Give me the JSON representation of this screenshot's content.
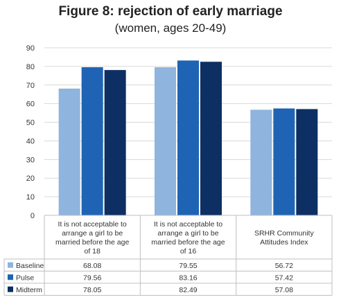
{
  "chart_data": {
    "type": "bar",
    "title": "Figure 8: rejection of early marriage",
    "subtitle": "(women, ages 20-49)",
    "categories": [
      [
        "It is not acceptable to",
        "arrange a girl to be",
        "married before the age",
        "of 18"
      ],
      [
        "It is not acceptable to",
        "arrange a girl to be",
        "married before the age",
        "of 16"
      ],
      [
        "SRHR Community",
        "Attitudes Index"
      ]
    ],
    "series": [
      {
        "name": "Baseline",
        "values": [
          68.08,
          79.55,
          56.72
        ],
        "labels": [
          "68.08",
          "79.55",
          "56.72"
        ],
        "color": "#8fb4de"
      },
      {
        "name": "Pulse",
        "values": [
          79.56,
          83.16,
          57.42
        ],
        "labels": [
          "79.56",
          "83.16",
          "57.42"
        ],
        "color": "#1f64b4"
      },
      {
        "name": "Midterm",
        "values": [
          78.05,
          82.49,
          57.08
        ],
        "labels": [
          "78.05",
          "82.49",
          "57.08"
        ],
        "color": "#0d2f63"
      }
    ],
    "ylim": [
      0,
      90
    ],
    "yticks": [
      "0",
      "10",
      "20",
      "30",
      "40",
      "50",
      "60",
      "70",
      "80",
      "90"
    ],
    "grid": true,
    "legend": "data-table-bottom"
  }
}
